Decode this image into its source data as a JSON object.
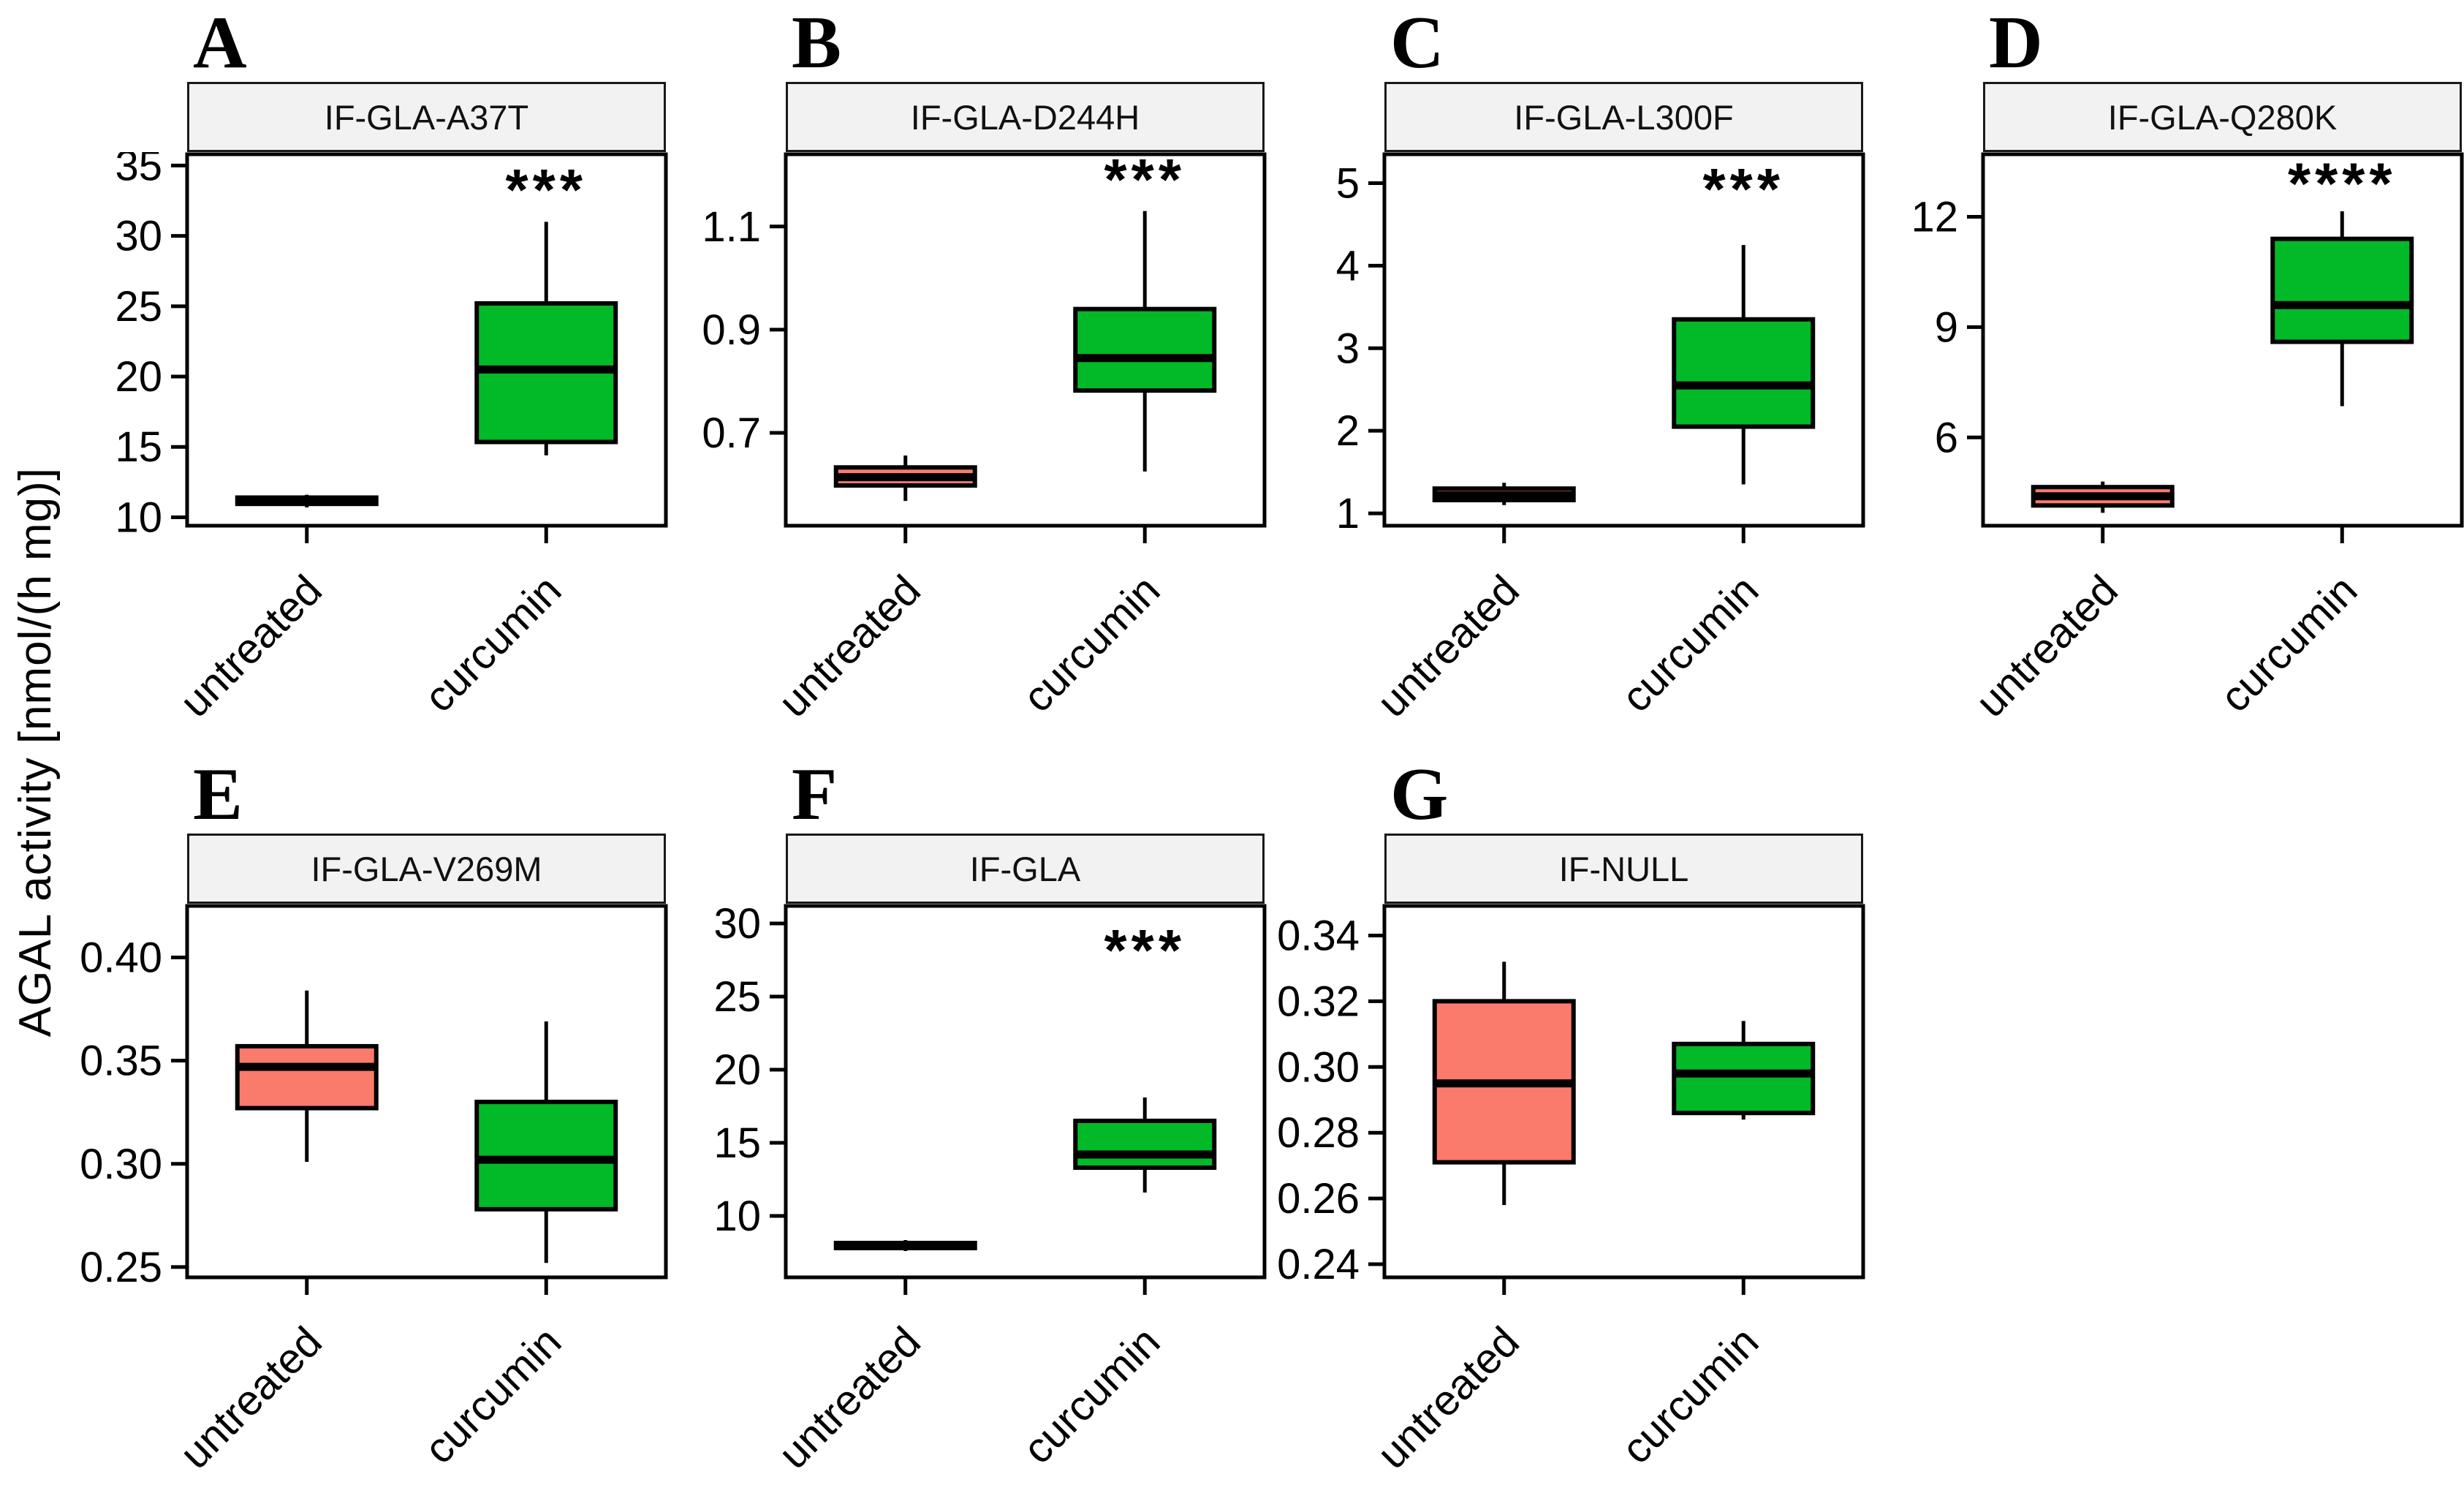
{
  "chart_data": {
    "type": "boxplot-facets",
    "ylabel": "AGAL activity [nmol/(h mg)]",
    "categories": [
      "untreated",
      "curcumin"
    ],
    "legend": "none",
    "grid": "off",
    "colors": {
      "salmon": "#FA7A6C",
      "green": "#02B927",
      "box_stroke": "#000000",
      "axis": "#000000",
      "strip_bg": "#F2F2F2",
      "strip_border": "#1A1A1A",
      "panel_bg": "#FFFFFF"
    },
    "panels": [
      {
        "letter": "A",
        "title": "IF-GLA-A37T",
        "significance": "***",
        "sig_y": 33.4,
        "ylim": [
          9.4,
          35.8
        ],
        "yticks": [
          {
            "v": 35,
            "label": "35"
          },
          {
            "v": 30,
            "label": "30"
          },
          {
            "v": 25,
            "label": "25"
          },
          {
            "v": 20,
            "label": "20"
          },
          {
            "v": 15,
            "label": "15"
          },
          {
            "v": 10,
            "label": "10"
          }
        ],
        "boxes": [
          {
            "category": "untreated",
            "fill": "salmon",
            "whisker_low": 10.7,
            "q1": 10.95,
            "median": 11.15,
            "q3": 11.4,
            "whisker_high": 11.6
          },
          {
            "category": "curcumin",
            "fill": "green",
            "whisker_low": 14.4,
            "q1": 15.35,
            "median": 20.5,
            "q3": 25.2,
            "whisker_high": 31.0
          }
        ]
      },
      {
        "letter": "B",
        "title": "IF-GLA-D244H",
        "significance": "***",
        "sig_y": 1.195,
        "ylim": [
          0.52,
          1.24
        ],
        "yticks": [
          {
            "v": 1.1,
            "label": "1.1"
          },
          {
            "v": 0.9,
            "label": "0.9"
          },
          {
            "v": 0.7,
            "label": "0.7"
          }
        ],
        "boxes": [
          {
            "category": "untreated",
            "fill": "salmon",
            "whisker_low": 0.568,
            "q1": 0.598,
            "median": 0.614,
            "q3": 0.633,
            "whisker_high": 0.656
          },
          {
            "category": "curcumin",
            "fill": "green",
            "whisker_low": 0.625,
            "q1": 0.782,
            "median": 0.845,
            "q3": 0.94,
            "whisker_high": 1.13
          }
        ]
      },
      {
        "letter": "C",
        "title": "IF-GLA-L300F",
        "significance": "***",
        "sig_y": 4.95,
        "ylim": [
          0.85,
          5.35
        ],
        "yticks": [
          {
            "v": 5,
            "label": "5"
          },
          {
            "v": 4,
            "label": "4"
          },
          {
            "v": 3,
            "label": "3"
          },
          {
            "v": 2,
            "label": "2"
          },
          {
            "v": 1,
            "label": "1"
          }
        ],
        "boxes": [
          {
            "category": "untreated",
            "fill": "salmon",
            "whisker_low": 1.1,
            "q1": 1.16,
            "median": 1.22,
            "q3": 1.3,
            "whisker_high": 1.37
          },
          {
            "category": "curcumin",
            "fill": "green",
            "whisker_low": 1.35,
            "q1": 2.05,
            "median": 2.55,
            "q3": 3.35,
            "whisker_high": 4.25
          }
        ]
      },
      {
        "letter": "D",
        "title": "IF-GLA-Q280K",
        "significance": "****",
        "sig_y": 12.95,
        "ylim": [
          3.6,
          13.7
        ],
        "yticks": [
          {
            "v": 12,
            "label": "12"
          },
          {
            "v": 9,
            "label": "9"
          },
          {
            "v": 6,
            "label": "6"
          }
        ],
        "boxes": [
          {
            "category": "untreated",
            "fill": "salmon",
            "whisker_low": 3.95,
            "q1": 4.15,
            "median": 4.4,
            "q3": 4.65,
            "whisker_high": 4.8
          },
          {
            "category": "curcumin",
            "fill": "green",
            "whisker_low": 6.85,
            "q1": 8.6,
            "median": 9.6,
            "q3": 11.4,
            "whisker_high": 12.15
          }
        ]
      },
      {
        "letter": "E",
        "title": "IF-GLA-V269M",
        "significance": "",
        "sig_y": null,
        "ylim": [
          0.245,
          0.425
        ],
        "yticks": [
          {
            "v": 0.4,
            "label": "0.40"
          },
          {
            "v": 0.35,
            "label": "0.35"
          },
          {
            "v": 0.3,
            "label": "0.30"
          },
          {
            "v": 0.25,
            "label": "0.25"
          }
        ],
        "boxes": [
          {
            "category": "untreated",
            "fill": "salmon",
            "whisker_low": 0.301,
            "q1": 0.327,
            "median": 0.347,
            "q3": 0.357,
            "whisker_high": 0.384
          },
          {
            "category": "curcumin",
            "fill": "green",
            "whisker_low": 0.252,
            "q1": 0.278,
            "median": 0.302,
            "q3": 0.33,
            "whisker_high": 0.369
          }
        ]
      },
      {
        "letter": "F",
        "title": "IF-GLA",
        "significance": "***",
        "sig_y": 28.3,
        "ylim": [
          5.8,
          31.2
        ],
        "yticks": [
          {
            "v": 30,
            "label": "30"
          },
          {
            "v": 25,
            "label": "25"
          },
          {
            "v": 20,
            "label": "20"
          },
          {
            "v": 15,
            "label": "15"
          },
          {
            "v": 10,
            "label": "10"
          }
        ],
        "boxes": [
          {
            "category": "untreated",
            "fill": "salmon",
            "whisker_low": 7.6,
            "q1": 7.8,
            "median": 7.95,
            "q3": 8.15,
            "whisker_high": 8.35
          },
          {
            "category": "curcumin",
            "fill": "green",
            "whisker_low": 11.6,
            "q1": 13.3,
            "median": 14.2,
            "q3": 16.5,
            "whisker_high": 18.1
          }
        ]
      },
      {
        "letter": "G",
        "title": "IF-NULL",
        "significance": "",
        "sig_y": null,
        "ylim": [
          0.236,
          0.349
        ],
        "yticks": [
          {
            "v": 0.34,
            "label": "0.34"
          },
          {
            "v": 0.32,
            "label": "0.32"
          },
          {
            "v": 0.3,
            "label": "0.30"
          },
          {
            "v": 0.28,
            "label": "0.28"
          },
          {
            "v": 0.26,
            "label": "0.26"
          },
          {
            "v": 0.24,
            "label": "0.24"
          }
        ],
        "boxes": [
          {
            "category": "untreated",
            "fill": "salmon",
            "whisker_low": 0.258,
            "q1": 0.271,
            "median": 0.295,
            "q3": 0.32,
            "whisker_high": 0.332
          },
          {
            "category": "curcumin",
            "fill": "green",
            "whisker_low": 0.284,
            "q1": 0.286,
            "median": 0.298,
            "q3": 0.307,
            "whisker_high": 0.314
          }
        ]
      }
    ]
  }
}
